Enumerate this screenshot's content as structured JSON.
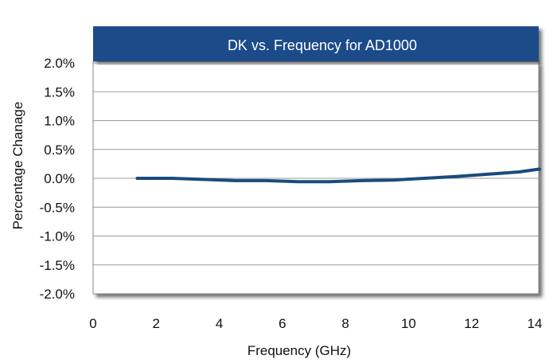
{
  "chart_data": {
    "type": "line",
    "title": "DK vs. Frequency for AD1000",
    "xlabel": "Frequency (GHz)",
    "ylabel": "Percentage Chanage",
    "xlim": [
      0,
      14
    ],
    "ylim": [
      -2.0,
      2.0
    ],
    "x_ticks": [
      0,
      2,
      4,
      6,
      8,
      10,
      12,
      14
    ],
    "x_tick_labels": [
      "0",
      "2",
      "4",
      "6",
      "8",
      "10",
      "12",
      "14"
    ],
    "y_ticks": [
      2.0,
      1.5,
      1.0,
      0.5,
      0.0,
      -0.5,
      -1.0,
      -1.5,
      -2.0
    ],
    "y_tick_labels": [
      "2.0%",
      "1.5%",
      "1.0%",
      "0.5%",
      "0.0%",
      "-0.5%",
      "-1.0%",
      "-1.5%",
      "-2.0%"
    ],
    "grid": "horizontal",
    "series": [
      {
        "color": "#1b4b7d",
        "x": [
          1.4,
          2.5,
          3.5,
          4.5,
          5.5,
          6.5,
          7.5,
          8.5,
          9.5,
          10.5,
          11.5,
          12.5,
          13.5,
          14.2
        ],
        "y": [
          0.0,
          0.0,
          -0.02,
          -0.04,
          -0.04,
          -0.06,
          -0.06,
          -0.04,
          -0.03,
          0.0,
          0.03,
          0.07,
          0.11,
          0.16
        ]
      }
    ],
    "colors": {
      "title_bar": "#1b4b8a",
      "grid": "#9a9a9a",
      "shadow": "#555555",
      "plot_background": "#ffffff"
    }
  }
}
